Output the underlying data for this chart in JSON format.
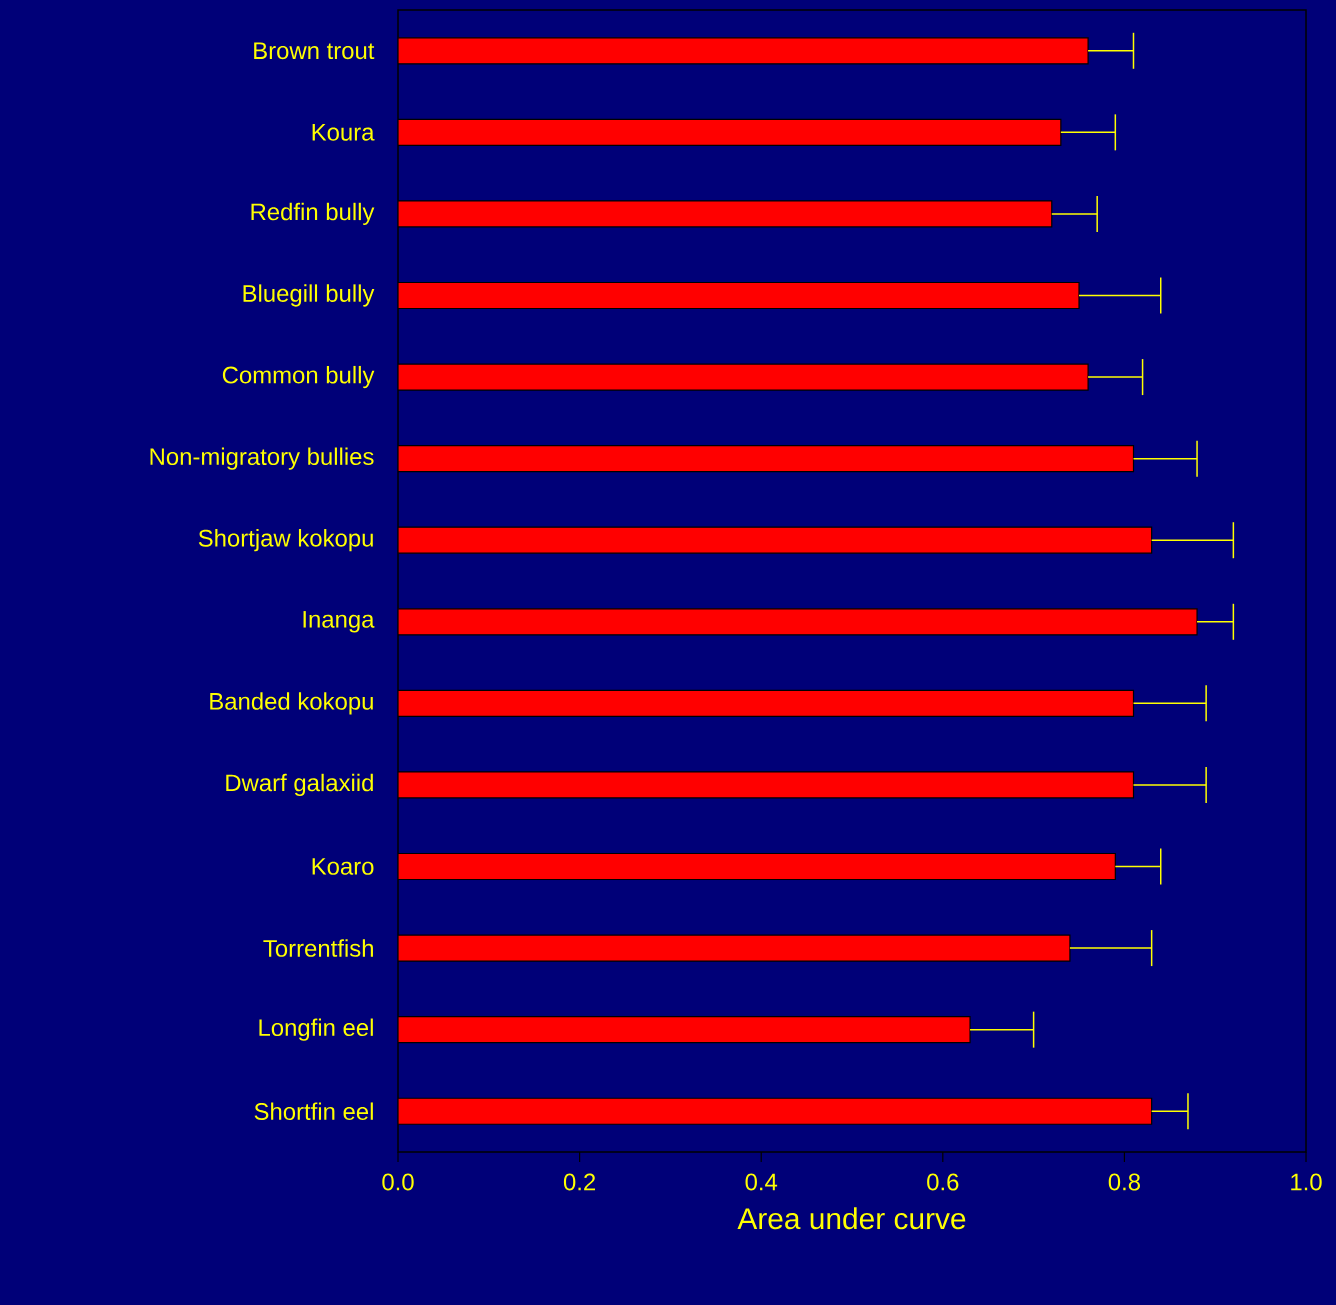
{
  "chart_data": {
    "type": "bar",
    "orientation": "horizontal",
    "xlabel": "Area under curve",
    "categories": [
      "Brown trout",
      "Koura",
      "Redfin bully",
      "Bluegill bully",
      "Common bully",
      "Non-migratory bullies",
      "Shortjaw kokopu",
      "Inanga",
      "Banded kokopu",
      "Dwarf galaxiid",
      "Koaro",
      "Torrentfish",
      "Longfin eel",
      "Shortfin eel"
    ],
    "values": [
      0.76,
      0.73,
      0.72,
      0.75,
      0.76,
      0.81,
      0.83,
      0.88,
      0.81,
      0.81,
      0.79,
      0.74,
      0.63,
      0.83
    ],
    "errors": [
      [
        0.76,
        0.81
      ],
      [
        0.73,
        0.79
      ],
      [
        0.72,
        0.77
      ],
      [
        0.75,
        0.84
      ],
      [
        0.76,
        0.82
      ],
      [
        0.81,
        0.88
      ],
      [
        0.83,
        0.92
      ],
      [
        0.88,
        0.92
      ],
      [
        0.81,
        0.89
      ],
      [
        0.81,
        0.89
      ],
      [
        0.79,
        0.84
      ],
      [
        0.74,
        0.83
      ],
      [
        0.63,
        0.7
      ],
      [
        0.83,
        0.87
      ]
    ],
    "color": "#ff0000",
    "xlim": [
      0.0,
      1.0
    ],
    "xticks": [
      {
        "value": 0,
        "label": "0.0"
      },
      {
        "value": 0.2,
        "label": "0.2"
      },
      {
        "value": 0.4,
        "label": "0.4"
      },
      {
        "value": 0.6,
        "label": "0.6"
      },
      {
        "value": 0.8,
        "label": "0.8"
      },
      {
        "value": 1.0,
        "label": "1.0"
      }
    ],
    "grid": false
  }
}
